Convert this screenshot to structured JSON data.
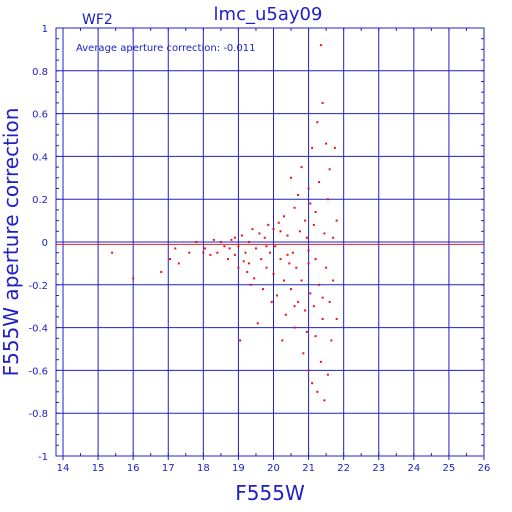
{
  "chart_data": {
    "type": "scatter",
    "title": "lmc_u5ay09",
    "chip_label": "WF2",
    "annotation": "Average aperture correction: -0.011",
    "xlabel": "F555W",
    "ylabel": "F555W aperture correction",
    "xlim": [
      13.8,
      26
    ],
    "ylim": [
      -1,
      1
    ],
    "x_ticks": [
      "14",
      "15",
      "16",
      "17",
      "18",
      "19",
      "20",
      "21",
      "22",
      "23",
      "24",
      "25",
      "26"
    ],
    "y_ticks": [
      "1",
      "0.8",
      "0.6",
      "0.4",
      "0.2",
      "0",
      "-0.2",
      "-0.4",
      "-0.6",
      "-0.8",
      "-1"
    ],
    "grid": true,
    "reference_line": {
      "y": -0.011,
      "color": "#dd2222"
    },
    "colors": {
      "axes": "#2020c8",
      "points": "#ee1010",
      "zero_line": "#dd2222"
    },
    "points": [
      [
        15.4,
        -0.05
      ],
      [
        16.0,
        -0.17
      ],
      [
        16.8,
        -0.14
      ],
      [
        17.05,
        -0.08
      ],
      [
        17.2,
        -0.03
      ],
      [
        17.3,
        -0.1
      ],
      [
        17.6,
        -0.05
      ],
      [
        17.8,
        0.0
      ],
      [
        18.0,
        -0.05
      ],
      [
        18.05,
        -0.03
      ],
      [
        18.2,
        -0.06
      ],
      [
        18.3,
        0.01
      ],
      [
        18.4,
        -0.05
      ],
      [
        18.5,
        0.0
      ],
      [
        18.6,
        -0.02
      ],
      [
        18.7,
        -0.08
      ],
      [
        18.75,
        -0.03
      ],
      [
        18.8,
        0.01
      ],
      [
        18.9,
        -0.06
      ],
      [
        19.0,
        -0.02
      ],
      [
        19.0,
        -0.12
      ],
      [
        19.05,
        -0.46
      ],
      [
        19.1,
        0.03
      ],
      [
        19.15,
        -0.09
      ],
      [
        19.2,
        -0.05
      ],
      [
        19.25,
        -0.14
      ],
      [
        19.3,
        0.0
      ],
      [
        19.35,
        -0.2
      ],
      [
        19.4,
        0.06
      ],
      [
        19.45,
        -0.17
      ],
      [
        19.5,
        -0.03
      ],
      [
        19.55,
        -0.38
      ],
      [
        19.6,
        0.04
      ],
      [
        19.65,
        -0.08
      ],
      [
        19.7,
        -0.22
      ],
      [
        19.75,
        0.02
      ],
      [
        19.8,
        -0.12
      ],
      [
        19.85,
        0.08
      ],
      [
        19.9,
        -0.05
      ],
      [
        19.95,
        -0.28
      ],
      [
        20.0,
        0.06
      ],
      [
        20.0,
        -0.15
      ],
      [
        20.05,
        -0.02
      ],
      [
        20.1,
        -0.25
      ],
      [
        20.15,
        0.09
      ],
      [
        20.2,
        -0.08
      ],
      [
        20.25,
        -0.46
      ],
      [
        20.3,
        0.12
      ],
      [
        20.3,
        -0.18
      ],
      [
        20.35,
        -0.34
      ],
      [
        20.4,
        0.03
      ],
      [
        20.45,
        -0.1
      ],
      [
        20.5,
        0.3
      ],
      [
        20.5,
        -0.22
      ],
      [
        20.55,
        -0.05
      ],
      [
        20.6,
        0.16
      ],
      [
        20.6,
        -0.4
      ],
      [
        20.65,
        -0.12
      ],
      [
        20.7,
        0.22
      ],
      [
        20.7,
        -0.28
      ],
      [
        20.75,
        0.05
      ],
      [
        20.8,
        -0.18
      ],
      [
        20.8,
        0.35
      ],
      [
        20.85,
        -0.52
      ],
      [
        20.9,
        0.1
      ],
      [
        20.9,
        -0.32
      ],
      [
        20.95,
        0.02
      ],
      [
        21.0,
        -0.1
      ],
      [
        21.0,
        0.25
      ],
      [
        21.0,
        -0.6
      ],
      [
        21.05,
        0.18
      ],
      [
        21.05,
        -0.24
      ],
      [
        21.1,
        -0.66
      ],
      [
        21.1,
        0.44
      ],
      [
        21.15,
        -0.3
      ],
      [
        21.15,
        0.08
      ],
      [
        21.2,
        -0.44
      ],
      [
        21.2,
        0.14
      ],
      [
        21.25,
        0.56
      ],
      [
        21.25,
        -0.7
      ],
      [
        21.3,
        -0.2
      ],
      [
        21.3,
        0.28
      ],
      [
        21.35,
        0.92
      ],
      [
        21.35,
        -0.56
      ],
      [
        21.4,
        0.65
      ],
      [
        21.4,
        -0.36
      ],
      [
        21.45,
        0.04
      ],
      [
        21.45,
        -0.74
      ],
      [
        21.5,
        0.46
      ],
      [
        21.5,
        -0.12
      ],
      [
        21.55,
        -0.62
      ],
      [
        21.55,
        0.2
      ],
      [
        21.6,
        -0.28
      ],
      [
        21.6,
        0.34
      ],
      [
        21.65,
        -0.46
      ],
      [
        21.7,
        0.02
      ],
      [
        21.7,
        -0.18
      ],
      [
        21.75,
        0.44
      ],
      [
        21.8,
        -0.36
      ],
      [
        21.8,
        0.1
      ],
      [
        20.4,
        -0.06
      ],
      [
        19.8,
        -0.02
      ],
      [
        20.2,
        0.05
      ],
      [
        21.0,
        -0.04
      ],
      [
        21.2,
        -0.08
      ],
      [
        20.6,
        -0.3
      ],
      [
        19.3,
        -0.1
      ],
      [
        18.9,
        0.02
      ],
      [
        21.4,
        -0.26
      ],
      [
        20.95,
        -0.42
      ]
    ]
  }
}
